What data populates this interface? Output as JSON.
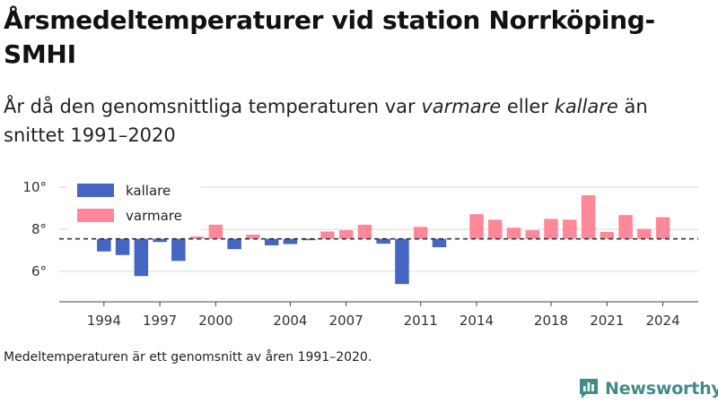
{
  "header": {
    "title": "Årsmedeltemperaturer vid station Norrköping-SMHI",
    "subtitle_parts": [
      "År då den genomsnittliga temperaturen var ",
      "varmare",
      " eller ",
      "kallare",
      " än snittet 1991–2020"
    ]
  },
  "footnote": "Medeltemperaturen är ett genomsnitt av åren 1991–2020.",
  "brand": {
    "name": "Newsworthy",
    "logo_icon": "bar-chart-logo-icon"
  },
  "chart_data": {
    "type": "bar",
    "title": "",
    "xlabel": "",
    "ylabel": "",
    "baseline": 7.55,
    "ylim": [
      4.6,
      10.6
    ],
    "xlim": [
      1991.6,
      2025.9
    ],
    "y_ticks": [
      6,
      8,
      10
    ],
    "y_tick_labels": [
      "6°",
      "8°",
      "10°"
    ],
    "x_ticks": [
      1994,
      1997,
      2000,
      2004,
      2007,
      2011,
      2014,
      2018,
      2021,
      2024
    ],
    "x_tick_labels": [
      "1994",
      "1997",
      "2000",
      "2004",
      "2007",
      "2011",
      "2014",
      "2018",
      "2021",
      "2024"
    ],
    "grid": "horizontal",
    "baseline_style": "dashed",
    "legend_position": "top-left",
    "legend": [
      {
        "key": "kallare",
        "label": "kallare",
        "color": "#4466c2"
      },
      {
        "key": "varmare",
        "label": "varmare",
        "color": "#ff8898"
      }
    ],
    "x": [
      1994,
      1995,
      1996,
      1997,
      1998,
      1999,
      2000,
      2001,
      2002,
      2003,
      2004,
      2005,
      2006,
      2007,
      2008,
      2009,
      2010,
      2011,
      2012,
      2013,
      2014,
      2015,
      2016,
      2017,
      2018,
      2019,
      2020,
      2021,
      2022,
      2023,
      2024
    ],
    "values": [
      6.95,
      6.78,
      5.78,
      7.4,
      6.5,
      7.66,
      8.22,
      7.06,
      7.75,
      7.24,
      7.3,
      7.5,
      7.9,
      7.96,
      8.22,
      7.32,
      5.4,
      8.12,
      7.15,
      null,
      8.72,
      8.46,
      8.08,
      7.96,
      8.5,
      8.46,
      9.62,
      7.88,
      8.68,
      8.02,
      8.58
    ]
  }
}
